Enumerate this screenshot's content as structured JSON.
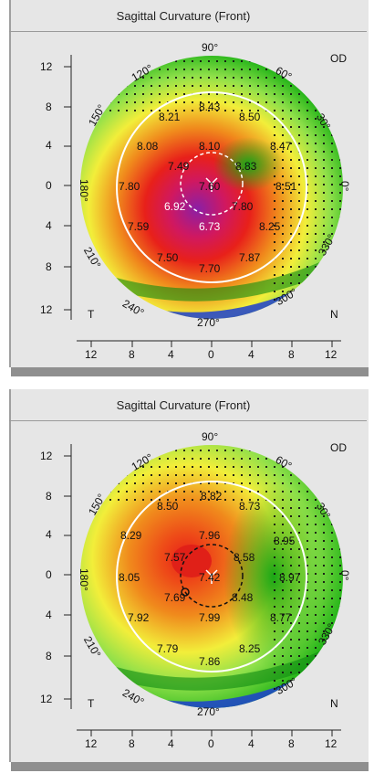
{
  "panels": [
    {
      "title": "Sagittal Curvature (Front)",
      "eye": "OD",
      "temporal": "T",
      "nasal": "N",
      "y_ticks": [
        "12",
        "8",
        "4",
        "0",
        "4",
        "8",
        "12"
      ],
      "x_ticks": [
        "12",
        "8",
        "4",
        "0",
        "4",
        "8",
        "12"
      ],
      "degrees": {
        "d90": "90°",
        "d60": "60°",
        "d30": "30°",
        "d0": "0°",
        "d330": "330°",
        "d300": "300°",
        "d270": "270°",
        "d240": "240°",
        "d210": "210°",
        "d180": "180°",
        "d150": "150°",
        "d120": "120°"
      },
      "values": [
        "8.43",
        "8.21",
        "8.50",
        "8.08",
        "8.10",
        "8.47",
        "7.49",
        "8.83",
        "7.80",
        "7.60",
        "8.51",
        "6.92",
        "7.80",
        "7.59",
        "6.73",
        "8.25",
        "7.50",
        "7.87",
        "7.70"
      ]
    },
    {
      "title": "Sagittal Curvature (Front)",
      "eye": "OD",
      "temporal": "T",
      "nasal": "N",
      "y_ticks": [
        "12",
        "8",
        "4",
        "0",
        "4",
        "8",
        "12"
      ],
      "x_ticks": [
        "12",
        "8",
        "4",
        "0",
        "4",
        "8",
        "12"
      ],
      "degrees": {
        "d90": "90°",
        "d60": "60°",
        "d30": "30°",
        "d0": "0°",
        "d330": "330°",
        "d300": "300°",
        "d270": "270°",
        "d240": "240°",
        "d210": "210°",
        "d180": "180°",
        "d150": "150°",
        "d120": "120°"
      },
      "values": [
        "8.82",
        "8.50",
        "8.73",
        "8.29",
        "7.96",
        "8.95",
        "7.57",
        "8.58",
        "8.05",
        "7.42",
        "8.97",
        "7.69",
        "8.48",
        "7.92",
        "7.99",
        "8.77",
        "7.79",
        "8.25",
        "7.86"
      ]
    }
  ],
  "colors": {
    "bg": "#e6e6e6",
    "purple": "#8a1fa6",
    "red": "#e8201a",
    "orange": "#f08a1c",
    "yellow": "#f2ee3a",
    "lightgreen": "#8fe04a",
    "green": "#22b418",
    "darkgreen": "#0f8a12",
    "blue": "#1c3fd0"
  }
}
